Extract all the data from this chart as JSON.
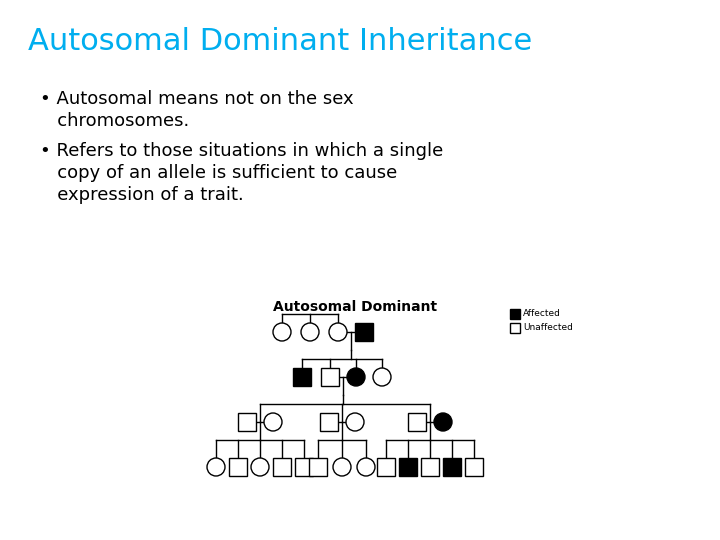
{
  "title": "Autosomal Dominant Inheritance",
  "title_color": "#00AEEF",
  "bullet1_line1": "• Autosomal means not on the sex",
  "bullet1_line2": "   chromosomes.",
  "bullet2_line1": "• Refers to those situations in which a single",
  "bullet2_line2": "   copy of an allele is sufficient to cause",
  "bullet2_line3": "   expression of a trait.",
  "pedigree_title": "Autosomal Dominant",
  "bg_color": "#ffffff",
  "text_color": "#000000",
  "bullet_fontsize": 13,
  "title_fontsize": 22
}
